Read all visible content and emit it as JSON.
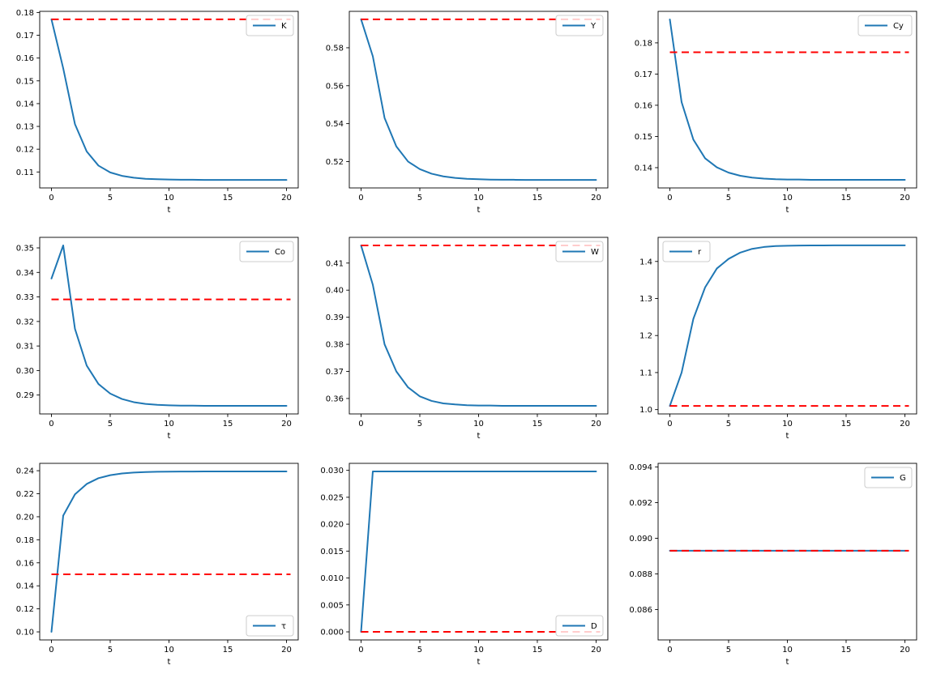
{
  "figure": {
    "background": "#ffffff",
    "series_color": "#1f77b4",
    "steady_state_color": "#ff0000",
    "xlabel": "t"
  },
  "chart_data": {
    "type": "line",
    "description": "3x3 grid of transition-dynamics time paths; each panel shows a blue solid series and a red dashed initial steady-state reference line",
    "x": [
      0,
      1,
      2,
      3,
      4,
      5,
      6,
      7,
      8,
      9,
      10,
      11,
      12,
      13,
      14,
      15,
      16,
      17,
      18,
      19,
      20
    ],
    "xlabel": "t",
    "xlim": [
      -1,
      21
    ],
    "xtick_values": [
      0,
      5,
      10,
      15,
      20
    ],
    "xtick_labels": [
      "0",
      "5",
      "10",
      "15",
      "20"
    ],
    "panels": [
      {
        "name": "K",
        "legend_label": "K",
        "legend_pos": "upper-right",
        "values": [
          0.177,
          0.1555,
          0.131,
          0.119,
          0.1128,
          0.1098,
          0.1083,
          0.1075,
          0.107,
          0.1068,
          0.1067,
          0.1066,
          0.1066,
          0.1065,
          0.1065,
          0.1065,
          0.1065,
          0.1065,
          0.1065,
          0.1065,
          0.1065
        ],
        "dashed_value": 0.177,
        "ylim": [
          0.103,
          0.1805
        ],
        "ytick_values": [
          0.11,
          0.12,
          0.13,
          0.14,
          0.15,
          0.16,
          0.17,
          0.18
        ],
        "ytick_labels": [
          "0.11",
          "0.12",
          "0.13",
          "0.14",
          "0.15",
          "0.16",
          "0.17",
          "0.18"
        ]
      },
      {
        "name": "Y",
        "legend_label": "Y",
        "legend_pos": "upper-right",
        "values": [
          0.595,
          0.5755,
          0.543,
          0.528,
          0.52,
          0.516,
          0.5136,
          0.5122,
          0.5114,
          0.5109,
          0.5107,
          0.5105,
          0.5104,
          0.5104,
          0.5103,
          0.5103,
          0.5103,
          0.5103,
          0.5103,
          0.5103,
          0.5103
        ],
        "dashed_value": 0.595,
        "ylim": [
          0.5061,
          0.5992
        ],
        "ytick_values": [
          0.52,
          0.54,
          0.56,
          0.58
        ],
        "ytick_labels": [
          "0.52",
          "0.54",
          "0.56",
          "0.58"
        ]
      },
      {
        "name": "Cy",
        "legend_label": "Cy",
        "legend_pos": "upper-right",
        "values": [
          0.1875,
          0.161,
          0.149,
          0.143,
          0.1401,
          0.1384,
          0.1374,
          0.1368,
          0.1365,
          0.1363,
          0.1362,
          0.1362,
          0.1361,
          0.1361,
          0.1361,
          0.1361,
          0.1361,
          0.1361,
          0.1361,
          0.1361,
          0.1361
        ],
        "dashed_value": 0.177,
        "ylim": [
          0.1335,
          0.1901
        ],
        "ytick_values": [
          0.14,
          0.15,
          0.16,
          0.17,
          0.18
        ],
        "ytick_labels": [
          "0.14",
          "0.15",
          "0.16",
          "0.17",
          "0.18"
        ]
      },
      {
        "name": "Co",
        "legend_label": "Co",
        "legend_pos": "upper-right",
        "values": [
          0.3375,
          0.351,
          0.317,
          0.302,
          0.2945,
          0.2906,
          0.2884,
          0.2871,
          0.2864,
          0.286,
          0.2858,
          0.2857,
          0.2857,
          0.2856,
          0.2856,
          0.2856,
          0.2856,
          0.2856,
          0.2856,
          0.2856,
          0.2856
        ],
        "dashed_value": 0.329,
        "ylim": [
          0.2823,
          0.3543
        ],
        "ytick_values": [
          0.29,
          0.3,
          0.31,
          0.32,
          0.33,
          0.34,
          0.35
        ],
        "ytick_labels": [
          "0.29",
          "0.30",
          "0.31",
          "0.32",
          "0.33",
          "0.34",
          "0.35"
        ]
      },
      {
        "name": "W",
        "legend_label": "W",
        "legend_pos": "upper-right",
        "values": [
          0.4165,
          0.402,
          0.38,
          0.37,
          0.3641,
          0.3608,
          0.3591,
          0.3582,
          0.3578,
          0.3575,
          0.3574,
          0.3574,
          0.3573,
          0.3573,
          0.3573,
          0.3573,
          0.3573,
          0.3573,
          0.3573,
          0.3573,
          0.3573
        ],
        "dashed_value": 0.4165,
        "ylim": [
          0.3543,
          0.4195
        ],
        "ytick_values": [
          0.36,
          0.37,
          0.38,
          0.39,
          0.4,
          0.41
        ],
        "ytick_labels": [
          "0.36",
          "0.37",
          "0.38",
          "0.39",
          "0.40",
          "0.41"
        ]
      },
      {
        "name": "r",
        "legend_label": "r",
        "legend_pos": "upper-left",
        "values": [
          1.01,
          1.1,
          1.245,
          1.33,
          1.381,
          1.407,
          1.424,
          1.434,
          1.439,
          1.4415,
          1.4425,
          1.443,
          1.4432,
          1.4433,
          1.4434,
          1.4434,
          1.4434,
          1.4434,
          1.4434,
          1.4434,
          1.4434
        ],
        "dashed_value": 1.01,
        "ylim": [
          0.9883,
          1.4651
        ],
        "ytick_values": [
          1.0,
          1.1,
          1.2,
          1.3,
          1.4
        ],
        "ytick_labels": [
          "1.0",
          "1.1",
          "1.2",
          "1.3",
          "1.4"
        ]
      },
      {
        "name": "tau",
        "legend_label": "τ",
        "legend_pos": "lower-right",
        "values": [
          0.1,
          0.201,
          0.2195,
          0.2285,
          0.2335,
          0.2361,
          0.2376,
          0.2384,
          0.2388,
          0.2391,
          0.2392,
          0.2393,
          0.2393,
          0.2394,
          0.2394,
          0.2394,
          0.2394,
          0.2394,
          0.2394,
          0.2394,
          0.2394
        ],
        "dashed_value": 0.15,
        "ylim": [
          0.093,
          0.2464
        ],
        "ytick_values": [
          0.1,
          0.12,
          0.14,
          0.16,
          0.18,
          0.2,
          0.22,
          0.24
        ],
        "ytick_labels": [
          "0.10",
          "0.12",
          "0.14",
          "0.16",
          "0.18",
          "0.20",
          "0.22",
          "0.24"
        ]
      },
      {
        "name": "D",
        "legend_label": "D",
        "legend_pos": "lower-right",
        "values": [
          0.0,
          0.0298,
          0.0298,
          0.0298,
          0.0298,
          0.0298,
          0.0298,
          0.0298,
          0.0298,
          0.0298,
          0.0298,
          0.0298,
          0.0298,
          0.0298,
          0.0298,
          0.0298,
          0.0298,
          0.0298,
          0.0298,
          0.0298,
          0.0298
        ],
        "dashed_value": 0.0,
        "ylim": [
          -0.0015,
          0.0313
        ],
        "ytick_values": [
          0.0,
          0.005,
          0.01,
          0.015,
          0.02,
          0.025,
          0.03
        ],
        "ytick_labels": [
          "0.000",
          "0.005",
          "0.010",
          "0.015",
          "0.020",
          "0.025",
          "0.030"
        ]
      },
      {
        "name": "G",
        "legend_label": "G",
        "legend_pos": "upper-right",
        "values": [
          0.0893,
          0.0893,
          0.0893,
          0.0893,
          0.0893,
          0.0893,
          0.0893,
          0.0893,
          0.0893,
          0.0893,
          0.0893,
          0.0893,
          0.0893,
          0.0893,
          0.0893,
          0.0893,
          0.0893,
          0.0893,
          0.0893,
          0.0893,
          0.0893
        ],
        "dashed_value": 0.0893,
        "ylim": [
          0.0843,
          0.0942
        ],
        "ytick_values": [
          0.086,
          0.088,
          0.09,
          0.092,
          0.094
        ],
        "ytick_labels": [
          "0.086",
          "0.088",
          "0.090",
          "0.092",
          "0.094"
        ]
      }
    ]
  }
}
